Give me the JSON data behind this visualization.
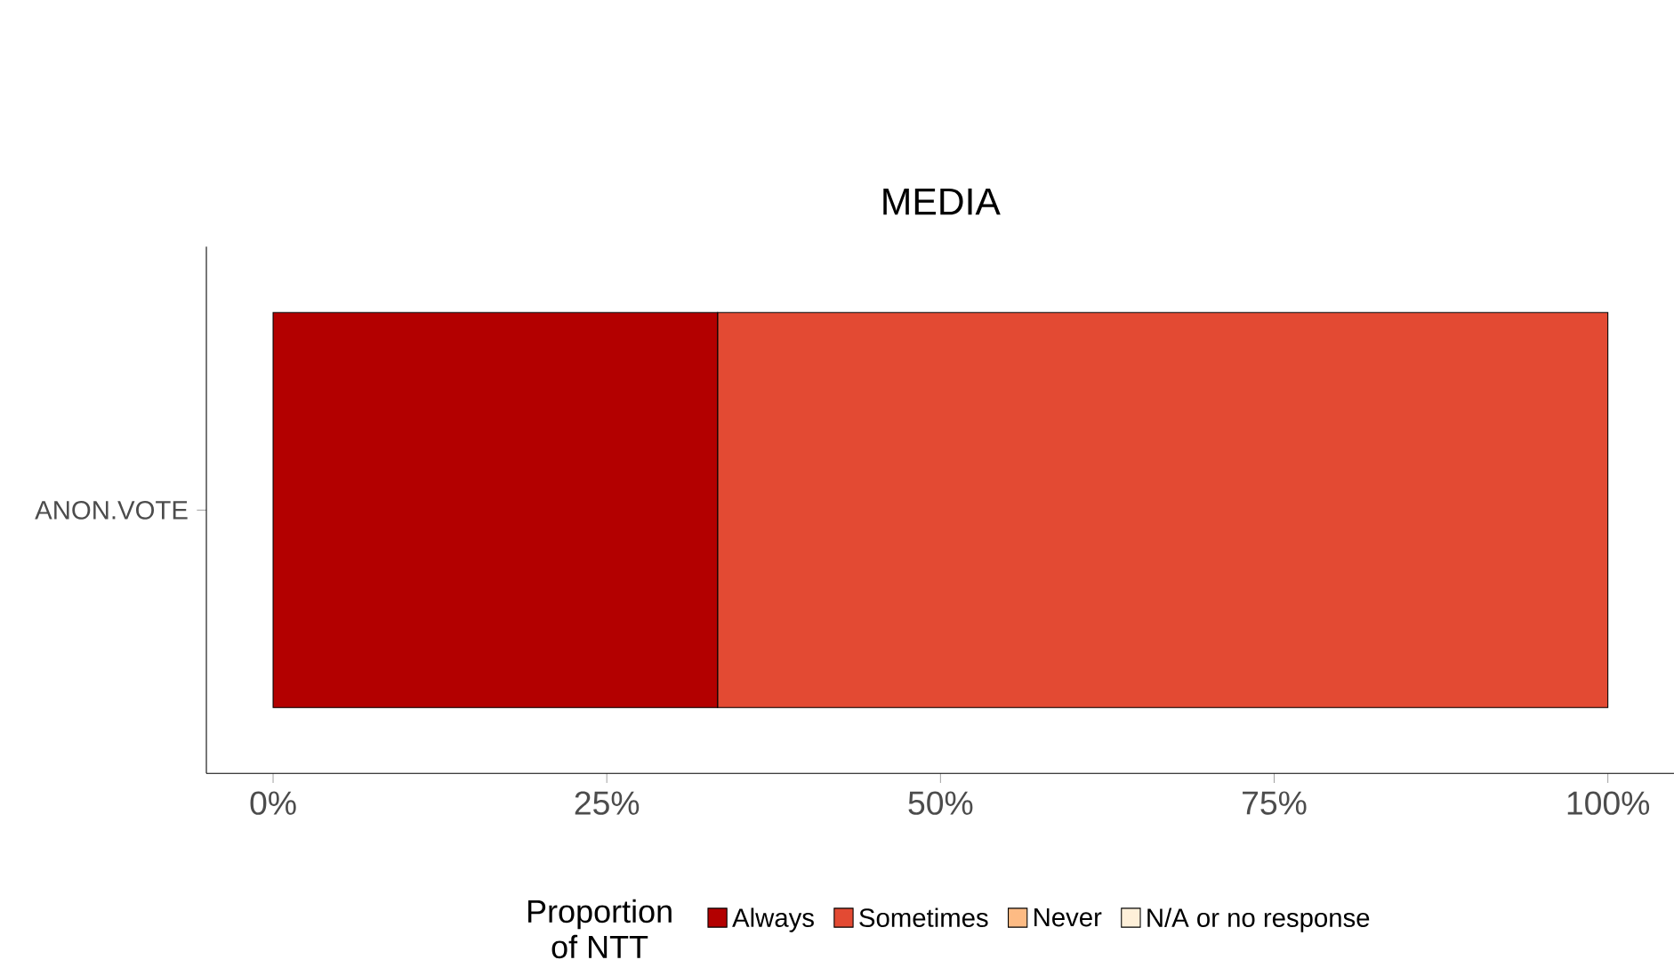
{
  "chart_data": {
    "type": "bar",
    "orientation": "horizontal",
    "stacked": true,
    "title": "MEDIA",
    "categories": [
      "ANON.VOTE"
    ],
    "series": [
      {
        "name": "Always",
        "color": "#b30000",
        "values": [
          33.3
        ]
      },
      {
        "name": "Sometimes",
        "color": "#e34a33",
        "values": [
          66.7
        ]
      },
      {
        "name": "Never",
        "color": "#fdbb84",
        "values": [
          0
        ]
      },
      {
        "name": "N/A or no response",
        "color": "#fef0d9",
        "values": [
          0
        ]
      }
    ],
    "xlim": [
      -5,
      105
    ],
    "xticks": [
      {
        "value": 0,
        "label": "0%"
      },
      {
        "value": 25,
        "label": "25%"
      },
      {
        "value": 50,
        "label": "50%"
      },
      {
        "value": 75,
        "label": "75%"
      },
      {
        "value": 100,
        "label": "100%"
      }
    ],
    "legend": "bottom",
    "legend_title": "Proportion of NTT"
  }
}
